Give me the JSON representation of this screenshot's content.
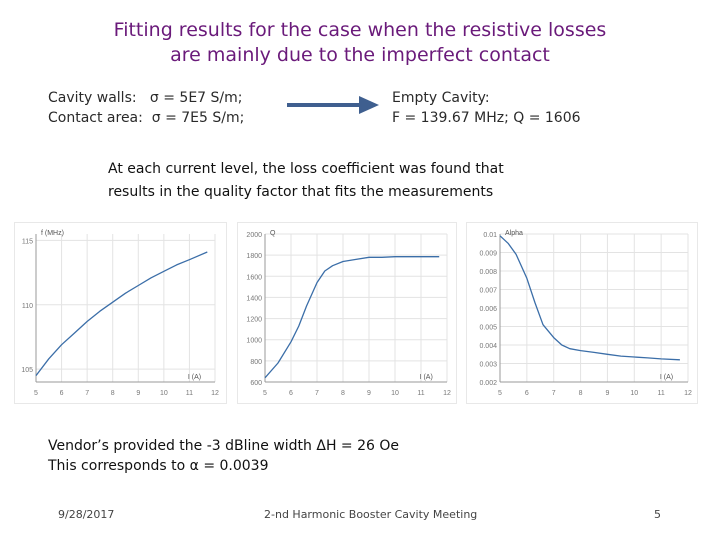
{
  "slide": {
    "title_line1": "Fitting results for the case when the resistive losses",
    "title_line2": "are mainly due to the imperfect contact",
    "params_left": [
      "Cavity walls:   σ = 5E7 S/m;",
      "Contact area:  σ = 7E5 S/m;"
    ],
    "params_right": [
      "Empty Cavity:",
      "F = 139.67 MHz; Q = 1606"
    ],
    "note_line1": "At each current level, the loss coefficient was found that",
    "note_line2": "results in the quality factor that fits the measurements",
    "footnote_line1": "Vendor’s provided the -3 dBline width ΔH = 26 Oe",
    "footnote_line2": "This corresponds to α = 0.0039",
    "footer_date": "9/28/2017",
    "footer_center": "2-nd Harmonic Booster Cavity Meeting",
    "footer_page": "5"
  },
  "colors": {
    "title": "#6a1a7a",
    "curve": "#3b6ea8",
    "arrow": "#3f5f8f",
    "grid": "#e3e3e3"
  },
  "chart_data": [
    {
      "type": "line",
      "title": "",
      "ylabel": "f (MHz)",
      "xlabel": "I (A)",
      "xlim": [
        5,
        12
      ],
      "ylim": [
        104,
        115.5
      ],
      "xticks": [
        5,
        6,
        7,
        8,
        9,
        10,
        11,
        12
      ],
      "yticks": [
        105,
        110,
        115
      ],
      "yticklabels": [
        "105",
        "110",
        "115"
      ],
      "series": [
        {
          "x": [
            5.0,
            5.5,
            6.0,
            6.5,
            7.0,
            7.5,
            8.0,
            8.5,
            9.0,
            9.5,
            10.0,
            10.5,
            11.0,
            11.7
          ],
          "y": [
            104.5,
            105.8,
            106.9,
            107.8,
            108.7,
            109.5,
            110.2,
            110.9,
            111.5,
            112.1,
            112.6,
            113.1,
            113.5,
            114.1
          ]
        }
      ]
    },
    {
      "type": "line",
      "title": "",
      "ylabel": "Q",
      "xlabel": "I (A)",
      "xlim": [
        5,
        12
      ],
      "ylim": [
        600,
        2000
      ],
      "xticks": [
        5,
        6,
        7,
        8,
        9,
        10,
        11,
        12
      ],
      "yticks": [
        600,
        800,
        1000,
        1200,
        1400,
        1600,
        1800,
        2000
      ],
      "yticklabels": [
        "600",
        "800",
        "1000",
        "1200",
        "1400",
        "1600",
        "1800",
        "2000"
      ],
      "series": [
        {
          "x": [
            5.0,
            5.5,
            6.0,
            6.3,
            6.6,
            7.0,
            7.3,
            7.6,
            8.0,
            8.5,
            9.0,
            9.5,
            10.0,
            10.5,
            11.0,
            11.7
          ],
          "y": [
            640,
            780,
            980,
            1130,
            1320,
            1540,
            1650,
            1700,
            1740,
            1760,
            1780,
            1780,
            1785,
            1785,
            1785,
            1785
          ]
        }
      ]
    },
    {
      "type": "line",
      "title": "",
      "ylabel": "Alpha",
      "xlabel": "I (A)",
      "xlim": [
        5,
        12
      ],
      "ylim": [
        0.002,
        0.01
      ],
      "xticks": [
        5,
        6,
        7,
        8,
        9,
        10,
        11,
        12
      ],
      "yticks": [
        0.002,
        0.003,
        0.004,
        0.005,
        0.006,
        0.007,
        0.008,
        0.009,
        0.01
      ],
      "yticklabels": [
        "0.002",
        "0.003",
        "0.004",
        "0.005",
        "0.006",
        "0.007",
        "0.008",
        "0.009",
        "0.01"
      ],
      "series": [
        {
          "x": [
            5.0,
            5.3,
            5.6,
            6.0,
            6.3,
            6.6,
            7.0,
            7.3,
            7.6,
            8.0,
            8.5,
            9.0,
            9.5,
            10.0,
            10.5,
            11.0,
            11.7
          ],
          "y": [
            0.0099,
            0.0095,
            0.0089,
            0.0076,
            0.0063,
            0.0051,
            0.0044,
            0.004,
            0.0038,
            0.0037,
            0.0036,
            0.0035,
            0.0034,
            0.00335,
            0.0033,
            0.00325,
            0.0032
          ]
        }
      ]
    }
  ]
}
